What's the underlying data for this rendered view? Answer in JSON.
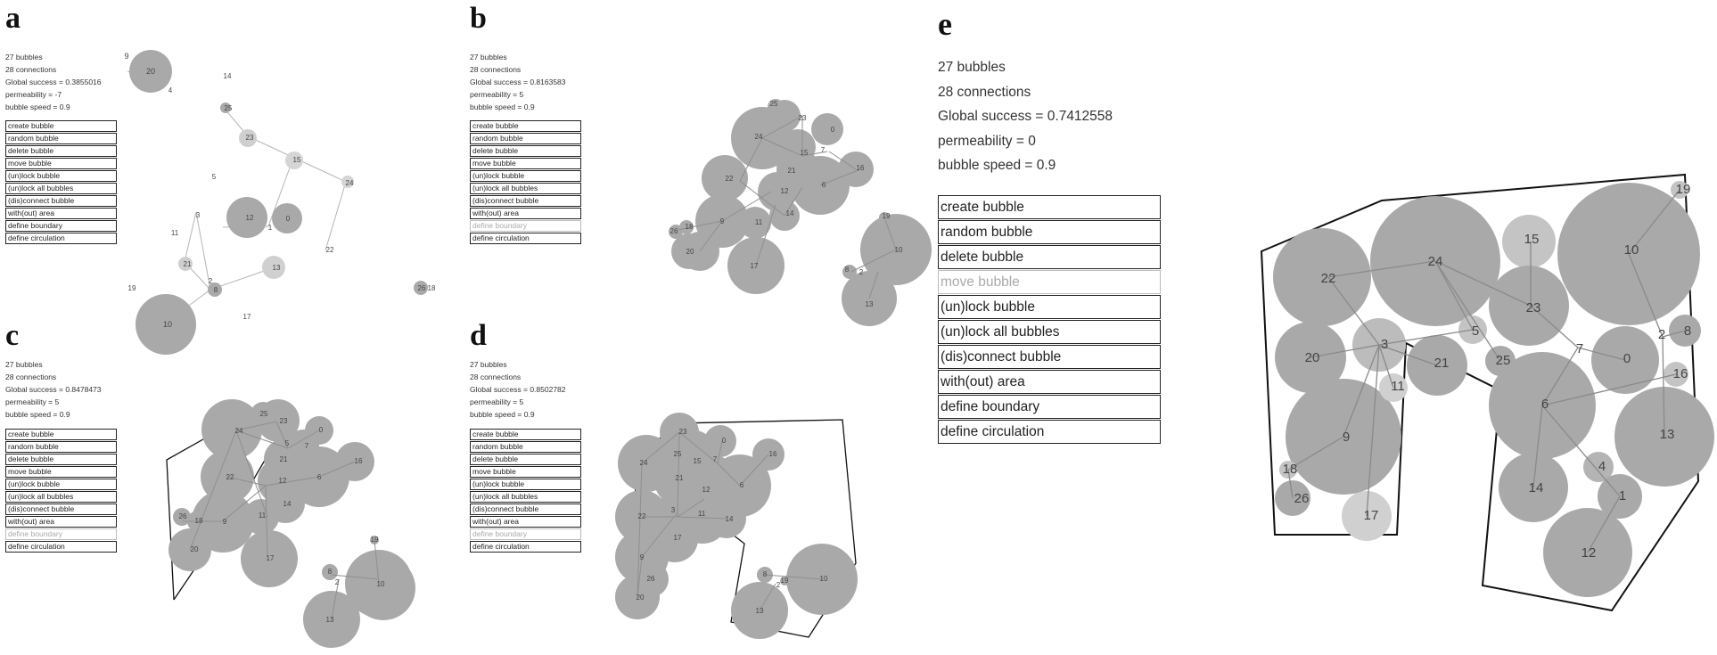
{
  "colors": {
    "bubble": "#a9a9a9",
    "bubble_light": "#cfcfcf",
    "edge": "#8f8f8f",
    "boundary": "#111111",
    "menu_dim": "#aaaaaa"
  },
  "menu": [
    "create bubble",
    "random bubble",
    "delete bubble",
    "move bubble",
    "(un)lock bubble",
    "(un)lock all bubbles",
    "(dis)connect bubble",
    "with(out) area",
    "define boundary",
    "define circulation"
  ],
  "panels": [
    {
      "id": "a",
      "label": "a",
      "stats": [
        "27 bubbles",
        "28 connections",
        "Global success = 0.3855016",
        "permeability = -7",
        "bubble speed = 0.9"
      ],
      "dim_menu": [],
      "bubbles": [
        {
          "id": "20",
          "r": 24,
          "c": "d"
        },
        {
          "id": "9",
          "r": 3,
          "c": "l"
        },
        {
          "id": "4",
          "r": 3,
          "c": "l"
        },
        {
          "id": "14",
          "r": 3,
          "c": "l"
        },
        {
          "id": "25",
          "r": 5,
          "c": "d"
        },
        {
          "id": "23",
          "r": 9,
          "c": "l"
        },
        {
          "id": "15",
          "r": 9,
          "c": "l"
        },
        {
          "id": "5",
          "r": 3,
          "c": "l"
        },
        {
          "id": "24",
          "r": 6,
          "c": "l"
        },
        {
          "id": "12",
          "r": 22,
          "c": "d"
        },
        {
          "id": "0",
          "r": 16,
          "c": "d"
        },
        {
          "id": "1",
          "r": 3,
          "c": "l"
        },
        {
          "id": "3",
          "r": 3,
          "c": "l"
        },
        {
          "id": "11",
          "r": 3,
          "c": "l"
        },
        {
          "id": "21",
          "r": 7,
          "c": "l"
        },
        {
          "id": "22",
          "r": 3,
          "c": "l"
        },
        {
          "id": "13",
          "r": 12,
          "c": "l"
        },
        {
          "id": "2",
          "r": 3,
          "c": "l"
        },
        {
          "id": "8",
          "r": 8,
          "c": "d"
        },
        {
          "id": "19",
          "r": 3,
          "c": "l"
        },
        {
          "id": "10",
          "r": 34,
          "c": "d"
        },
        {
          "id": "17",
          "r": 3,
          "c": "l"
        },
        {
          "id": "26",
          "r": 7,
          "c": "d"
        },
        {
          "id": "18",
          "r": 3,
          "c": "l"
        }
      ]
    },
    {
      "id": "b",
      "label": "b",
      "stats": [
        "27 bubbles",
        "28 connections",
        "Global success = 0.8163583",
        "permeability = 5",
        "bubble speed = 0.9"
      ],
      "dim_menu": [
        8
      ]
    },
    {
      "id": "c",
      "label": "c",
      "stats": [
        "27 bubbles",
        "28 connections",
        "Global success = 0.8478473",
        "permeability = 5",
        "bubble speed = 0.9"
      ],
      "dim_menu": [
        8
      ]
    },
    {
      "id": "d",
      "label": "d",
      "stats": [
        "27 bubbles",
        "28 connections",
        "Global success = 0.8502782",
        "permeability = 5",
        "bubble speed = 0.9"
      ],
      "dim_menu": [
        8
      ]
    },
    {
      "id": "e",
      "label": "e",
      "stats": [
        "27 bubbles",
        "28 connections",
        "Global success = 0.7412558",
        "permeability = 0",
        "bubble speed = 0.9"
      ],
      "dim_menu": [
        3
      ]
    }
  ]
}
